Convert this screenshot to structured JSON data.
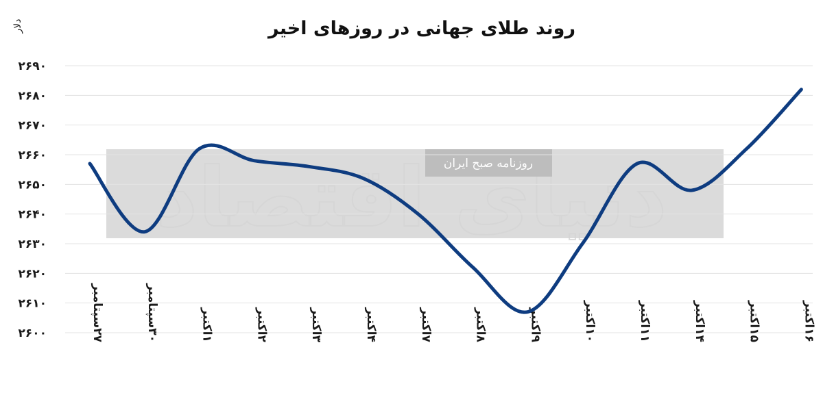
{
  "title": "روند طلای جهانی در روزهای اخیر",
  "watermark": {
    "band_label": "روزنامه صبح ایران",
    "logo_text": "دنیای اقتصاد",
    "band_color": "#d7d7d7",
    "label_box_color": "#bdbdbd"
  },
  "colors": {
    "line": "#0e3c80",
    "grid": "#e3e3e3",
    "text": "#1a1a1a"
  },
  "chart_data": {
    "type": "line",
    "title": "روند طلای جهانی در روزهای اخیر",
    "ylabel": "دلار",
    "xlabel": "",
    "ylim": [
      2600,
      2690
    ],
    "yticks": [
      2600,
      2610,
      2620,
      2630,
      2640,
      2650,
      2660,
      2670,
      2680,
      2690
    ],
    "ytick_labels": [
      "۲۶۰۰",
      "۲۶۱۰",
      "۲۶۲۰",
      "۲۶۳۰",
      "۲۶۴۰",
      "۲۶۵۰",
      "۲۶۶۰",
      "۲۶۷۰",
      "۲۶۸۰",
      "۲۶۹۰"
    ],
    "grid": true,
    "legend": "none",
    "categories": [
      "۲۷سپتامبر",
      "۳۰سپتامبر",
      "۱اکتبر",
      "۲اکتبر",
      "۳اکتبر",
      "۴اکتبر",
      "۷اکتبر",
      "۸اکتبر",
      "۹اکتبر",
      "۱۰اکتبر",
      "۱۱اکتبر",
      "۱۴اکتبر",
      "۱۵اکتبر",
      "۱۶اکتبر"
    ],
    "series": [
      {
        "values": [
          2657,
          2634,
          2662,
          2658,
          2656,
          2652,
          2640,
          2622,
          2607,
          2630,
          2657,
          2648,
          2662,
          2682
        ]
      }
    ]
  }
}
